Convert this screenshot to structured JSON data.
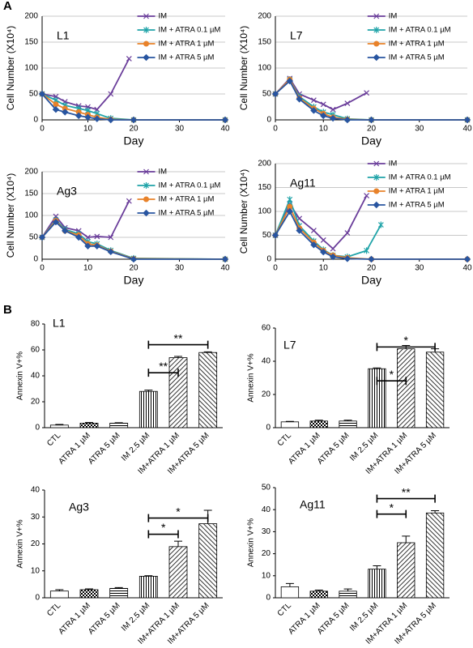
{
  "panels": [
    "A",
    "B"
  ],
  "chart_data": [
    {
      "type": "line",
      "label": "L1",
      "xlabel": "Day",
      "ylabel": "Cell Number (X10⁴)",
      "xlim": [
        0,
        40
      ],
      "xticks": [
        0,
        10,
        20,
        30,
        40
      ],
      "ylim": [
        0,
        200
      ],
      "yticks": [
        0,
        50,
        100,
        150,
        200
      ],
      "grid": true,
      "series": [
        {
          "name": "IM",
          "color": "#6a3d9a",
          "marker": "x",
          "x": [
            0,
            3,
            5,
            8,
            10,
            12,
            15,
            19
          ],
          "values": [
            50,
            45,
            35,
            27,
            25,
            20,
            50,
            118
          ]
        },
        {
          "name": "IM + ATRA 0.1 µM",
          "color": "#1fa3a8",
          "marker": "star",
          "x": [
            0,
            3,
            5,
            8,
            10,
            12,
            15,
            20,
            40
          ],
          "values": [
            50,
            38,
            28,
            22,
            18,
            12,
            3,
            0,
            0
          ]
        },
        {
          "name": "IM + ATRA 1 µM",
          "color": "#e8822a",
          "marker": "circle",
          "x": [
            0,
            3,
            5,
            8,
            10,
            12,
            15,
            20,
            40
          ],
          "values": [
            50,
            30,
            22,
            15,
            10,
            5,
            1,
            0,
            0
          ]
        },
        {
          "name": "IM + ATRA 5 µM",
          "color": "#2855a0",
          "marker": "diamond",
          "x": [
            0,
            3,
            5,
            8,
            10,
            12,
            15,
            20,
            40
          ],
          "values": [
            50,
            20,
            15,
            8,
            5,
            2,
            0,
            0,
            0
          ]
        }
      ]
    },
    {
      "type": "line",
      "label": "L7",
      "xlabel": "Day",
      "ylabel": "Cell Number (X10⁴)",
      "xlim": [
        0,
        40
      ],
      "xticks": [
        0,
        10,
        20,
        30,
        40
      ],
      "ylim": [
        0,
        200
      ],
      "yticks": [
        0,
        50,
        100,
        150,
        200
      ],
      "grid": true,
      "series": [
        {
          "name": "IM",
          "color": "#6a3d9a",
          "marker": "x",
          "x": [
            0,
            3,
            5,
            8,
            10,
            12,
            15,
            19
          ],
          "values": [
            50,
            80,
            50,
            38,
            30,
            20,
            32,
            52
          ]
        },
        {
          "name": "IM + ATRA 0.1 µM",
          "color": "#1fa3a8",
          "marker": "star",
          "x": [
            0,
            3,
            5,
            8,
            10,
            12,
            15,
            20,
            40
          ],
          "values": [
            50,
            78,
            45,
            25,
            15,
            10,
            2,
            0,
            0
          ]
        },
        {
          "name": "IM + ATRA 1 µM",
          "color": "#e8822a",
          "marker": "circle",
          "x": [
            0,
            3,
            5,
            8,
            10,
            12,
            15,
            20,
            40
          ],
          "values": [
            50,
            78,
            42,
            22,
            12,
            5,
            1,
            0,
            0
          ]
        },
        {
          "name": "IM + ATRA 5 µM",
          "color": "#2855a0",
          "marker": "diamond",
          "x": [
            0,
            3,
            5,
            8,
            10,
            12,
            15,
            20,
            40
          ],
          "values": [
            50,
            75,
            40,
            18,
            8,
            3,
            0,
            0,
            0
          ]
        }
      ]
    },
    {
      "type": "line",
      "label": "Ag3",
      "xlabel": "Day",
      "ylabel": "Cell Number (X10⁴)",
      "xlim": [
        0,
        40
      ],
      "xticks": [
        0,
        10,
        20,
        30,
        40
      ],
      "ylim": [
        0,
        200
      ],
      "yticks": [
        0,
        50,
        100,
        150,
        200
      ],
      "grid": true,
      "series": [
        {
          "name": "IM",
          "color": "#6a3d9a",
          "marker": "x",
          "x": [
            0,
            3,
            5,
            8,
            10,
            12,
            15,
            19
          ],
          "values": [
            50,
            98,
            72,
            65,
            50,
            52,
            50,
            133
          ]
        },
        {
          "name": "IM + ATRA 0.1 µM",
          "color": "#1fa3a8",
          "marker": "star",
          "x": [
            0,
            3,
            5,
            8,
            10,
            12,
            15,
            20,
            40
          ],
          "values": [
            50,
            90,
            68,
            58,
            40,
            35,
            20,
            2,
            0
          ]
        },
        {
          "name": "IM + ATRA 1 µM",
          "color": "#e8822a",
          "marker": "circle",
          "x": [
            0,
            3,
            5,
            8,
            10,
            12,
            15,
            20,
            40
          ],
          "values": [
            50,
            88,
            65,
            55,
            35,
            32,
            18,
            1,
            0
          ]
        },
        {
          "name": "IM + ATRA 5 µM",
          "color": "#2855a0",
          "marker": "diamond",
          "x": [
            0,
            3,
            5,
            8,
            10,
            12,
            15,
            20,
            40
          ],
          "values": [
            50,
            85,
            65,
            50,
            30,
            30,
            17,
            0,
            0
          ]
        }
      ]
    },
    {
      "type": "line",
      "label": "Ag11",
      "xlabel": "Day",
      "ylabel": "Cell Number (X10⁴)",
      "xlim": [
        0,
        40
      ],
      "xticks": [
        0,
        10,
        20,
        30,
        40
      ],
      "ylim": [
        0,
        200
      ],
      "yticks": [
        0,
        50,
        100,
        150,
        200
      ],
      "grid": true,
      "series": [
        {
          "name": "IM",
          "color": "#6a3d9a",
          "marker": "x",
          "x": [
            0,
            3,
            5,
            8,
            10,
            12,
            15,
            19
          ],
          "values": [
            50,
            115,
            85,
            60,
            40,
            22,
            55,
            133
          ]
        },
        {
          "name": "IM + ATRA 0.1 µM",
          "color": "#1fa3a8",
          "marker": "star",
          "x": [
            0,
            3,
            5,
            8,
            10,
            12,
            15,
            19,
            22
          ],
          "values": [
            50,
            125,
            70,
            38,
            20,
            8,
            5,
            18,
            72
          ]
        },
        {
          "name": "IM + ATRA 1 µM",
          "color": "#e8822a",
          "marker": "circle",
          "x": [
            0,
            3,
            5,
            8,
            10,
            12,
            15,
            20,
            40
          ],
          "values": [
            50,
            110,
            65,
            35,
            18,
            8,
            3,
            0,
            0
          ]
        },
        {
          "name": "IM + ATRA 5 µM",
          "color": "#2855a0",
          "marker": "diamond",
          "x": [
            0,
            3,
            5,
            8,
            10,
            12,
            15,
            20,
            40
          ],
          "values": [
            50,
            100,
            60,
            30,
            15,
            5,
            1,
            0,
            0
          ]
        }
      ]
    },
    {
      "type": "bar",
      "label": "L1",
      "ylabel": "Annexin V+%",
      "ylim": [
        0,
        80
      ],
      "yticks": [
        0,
        20,
        40,
        60,
        80
      ],
      "categories": [
        "CTL",
        "ATRA 1 µM",
        "ATRA 5 µM",
        "IM 2.5 µM",
        "IM+ATRA 1 µM",
        "IM+ATRA 5 µM"
      ],
      "values": [
        2,
        3.5,
        3.5,
        28,
        54,
        58
      ],
      "errors": [
        0.5,
        0.5,
        0.3,
        1,
        1,
        0.5
      ],
      "significance": [
        {
          "from": 3,
          "to": 4,
          "label": "**"
        },
        {
          "from": 3,
          "to": 5,
          "label": "**"
        }
      ]
    },
    {
      "type": "bar",
      "label": "L7",
      "ylabel": "Annexin V+%",
      "ylim": [
        0,
        60
      ],
      "yticks": [
        0,
        20,
        40,
        60
      ],
      "categories": [
        "CTL",
        "ATRA 1 µM",
        "ATRA 5 µM",
        "IM 2.5 µM",
        "IM+ATRA 1 µM",
        "IM+ATRA 5 µM"
      ],
      "values": [
        3.5,
        4,
        4,
        35.5,
        47.5,
        45.5
      ],
      "errors": [
        0.3,
        0.5,
        0.5,
        0.5,
        2,
        2
      ],
      "significance": [
        {
          "from": 3,
          "to": 4,
          "label": "*"
        },
        {
          "from": 3,
          "to": 5,
          "label": "*"
        }
      ]
    },
    {
      "type": "bar",
      "label": "Ag3",
      "ylabel": "Annexin V+%",
      "ylim": [
        0,
        40
      ],
      "yticks": [
        0,
        10,
        20,
        30,
        40
      ],
      "categories": [
        "CTL",
        "ATRA 1 µM",
        "ATRA 5 µM",
        "IM 2.5 µM",
        "IM+ATRA 1 µM",
        "IM+ATRA 5 µM"
      ],
      "values": [
        2.5,
        3,
        3.5,
        8,
        19,
        27.5
      ],
      "errors": [
        0.5,
        0.3,
        0.3,
        0.2,
        2,
        5
      ],
      "significance": [
        {
          "from": 3,
          "to": 4,
          "label": "*"
        },
        {
          "from": 3,
          "to": 5,
          "label": "*"
        }
      ]
    },
    {
      "type": "bar",
      "label": "Ag11",
      "ylabel": "Annexin V+%",
      "ylim": [
        0,
        50
      ],
      "yticks": [
        0,
        10,
        20,
        30,
        40,
        50
      ],
      "categories": [
        "CTL",
        "ATRA 1 µM",
        "ATRA 5 µM",
        "IM 2.5 µM",
        "IM+ATRA 1 µM",
        "IM+ATRA 5 µM"
      ],
      "values": [
        5,
        3,
        3,
        13,
        25,
        38.5
      ],
      "errors": [
        1.5,
        0.5,
        1,
        1.5,
        3,
        1
      ],
      "significance": [
        {
          "from": 3,
          "to": 4,
          "label": "*"
        },
        {
          "from": 3,
          "to": 5,
          "label": "**"
        }
      ]
    }
  ]
}
